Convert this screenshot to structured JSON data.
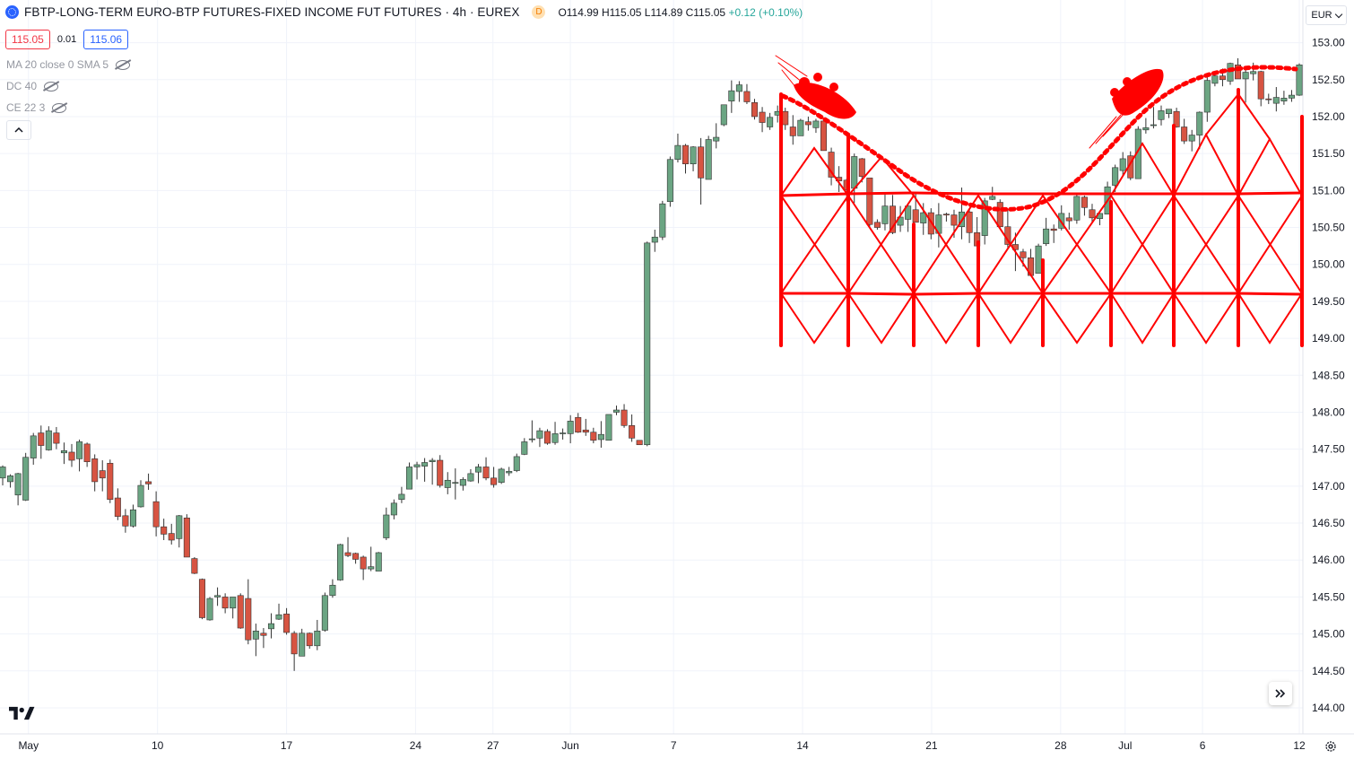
{
  "header": {
    "title": "FBTP-LONG-TERM EURO-BTP FUTURES-FIXED INCOME FUT FUTURES · 4h · EUREX",
    "badge": "D",
    "open": "O114.99",
    "high": "H115.05",
    "low": "L114.89",
    "close": "C115.05",
    "change": "+0.12 (+0.10%)"
  },
  "trade": {
    "sell": "115.05",
    "spread": "0.01",
    "buy": "115.06"
  },
  "indicators": [
    {
      "label": "MA 20 close 0 SMA 5"
    },
    {
      "label": "DC 40"
    },
    {
      "label": "CE 22 3"
    }
  ],
  "currency": "EUR",
  "colors": {
    "up": "#6ba583",
    "down": "#d75442",
    "drawing": "#ff0000",
    "grid": "#f0f3fa"
  },
  "chart_data": {
    "type": "candlestick",
    "y_ticks": [
      "153.00",
      "152.50",
      "152.00",
      "151.50",
      "151.00",
      "150.50",
      "150.00",
      "149.50",
      "149.00",
      "148.50",
      "148.00",
      "147.50",
      "147.00",
      "146.50",
      "146.00",
      "145.50",
      "145.00",
      "144.50",
      "144.00"
    ],
    "x_ticks": [
      "May",
      "10",
      "17",
      "24",
      "27",
      "Jun",
      "7",
      "14",
      "21",
      "28",
      "Jul",
      "6",
      "12"
    ],
    "ylim": [
      143.7,
      153.4
    ],
    "ohlc": [
      [
        147.11,
        147.28,
        147.01,
        147.26
      ],
      [
        147.06,
        147.16,
        146.98,
        147.14
      ],
      [
        146.88,
        147.18,
        146.74,
        147.17
      ],
      [
        146.81,
        147.45,
        146.8,
        147.39
      ],
      [
        147.38,
        147.72,
        147.29,
        147.68
      ],
      [
        147.72,
        147.82,
        147.37,
        147.55
      ],
      [
        147.49,
        147.81,
        147.48,
        147.75
      ],
      [
        147.72,
        147.8,
        147.5,
        147.58
      ],
      [
        147.45,
        147.59,
        147.3,
        147.48
      ],
      [
        147.46,
        147.57,
        147.26,
        147.35
      ],
      [
        147.37,
        147.63,
        147.2,
        147.6
      ],
      [
        147.57,
        147.59,
        147.26,
        147.33
      ],
      [
        147.37,
        147.43,
        146.93,
        147.06
      ],
      [
        147.21,
        147.35,
        146.93,
        147.11
      ],
      [
        147.31,
        147.36,
        146.77,
        146.82
      ],
      [
        146.84,
        146.97,
        146.54,
        146.59
      ],
      [
        146.6,
        146.69,
        146.37,
        146.46
      ],
      [
        146.46,
        146.75,
        146.44,
        146.68
      ],
      [
        146.72,
        147.08,
        146.71,
        147.01
      ],
      [
        147.06,
        147.17,
        146.95,
        147.03
      ],
      [
        146.79,
        146.93,
        146.32,
        146.45
      ],
      [
        146.45,
        146.56,
        146.27,
        146.35
      ],
      [
        146.36,
        146.49,
        146.21,
        146.27
      ],
      [
        146.29,
        146.61,
        146.17,
        146.6
      ],
      [
        146.57,
        146.62,
        146.04,
        146.04
      ],
      [
        146.02,
        146.04,
        145.81,
        145.82
      ],
      [
        145.74,
        145.75,
        145.2,
        145.22
      ],
      [
        145.19,
        145.5,
        145.18,
        145.48
      ],
      [
        145.5,
        145.63,
        145.38,
        145.52
      ],
      [
        145.5,
        145.55,
        145.28,
        145.35
      ],
      [
        145.35,
        145.48,
        145.21,
        145.5
      ],
      [
        145.52,
        145.55,
        145.07,
        145.08
      ],
      [
        145.48,
        145.74,
        144.86,
        144.92
      ],
      [
        144.93,
        145.14,
        144.7,
        145.04
      ],
      [
        145.01,
        145.08,
        144.81,
        144.98
      ],
      [
        145.07,
        145.28,
        144.94,
        145.14
      ],
      [
        145.2,
        145.41,
        145.19,
        145.26
      ],
      [
        145.27,
        145.35,
        144.99,
        145.02
      ],
      [
        145.01,
        145.04,
        144.5,
        144.73
      ],
      [
        144.7,
        145.07,
        144.73,
        145.01
      ],
      [
        145.01,
        145.02,
        144.8,
        144.84
      ],
      [
        144.84,
        145.19,
        144.78,
        145.04
      ],
      [
        145.05,
        145.56,
        145.03,
        145.52
      ],
      [
        145.52,
        145.74,
        145.49,
        145.66
      ],
      [
        145.73,
        146.22,
        145.72,
        146.21
      ],
      [
        146.1,
        146.31,
        146.04,
        146.06
      ],
      [
        146.09,
        146.1,
        145.95,
        146.01
      ],
      [
        146.04,
        146.06,
        145.73,
        145.88
      ],
      [
        145.88,
        146.18,
        145.85,
        145.91
      ],
      [
        145.85,
        146.11,
        145.87,
        146.1
      ],
      [
        146.3,
        146.71,
        146.27,
        146.61
      ],
      [
        146.61,
        146.82,
        146.55,
        146.77
      ],
      [
        146.82,
        146.99,
        146.77,
        146.89
      ],
      [
        146.96,
        147.32,
        146.98,
        147.26
      ],
      [
        147.26,
        147.33,
        147.09,
        147.29
      ],
      [
        147.27,
        147.38,
        147.06,
        147.32
      ],
      [
        147.33,
        147.38,
        147.02,
        147.35
      ],
      [
        147.35,
        147.42,
        146.98,
        147.01
      ],
      [
        146.98,
        147.19,
        146.89,
        147.08
      ],
      [
        147.05,
        147.24,
        146.82,
        147.05
      ],
      [
        147.01,
        147.12,
        146.94,
        147.09
      ],
      [
        147.07,
        147.23,
        147.06,
        147.17
      ],
      [
        147.19,
        147.3,
        147.04,
        147.26
      ],
      [
        147.26,
        147.39,
        147.08,
        147.11
      ],
      [
        147.11,
        147.26,
        146.98,
        147.02
      ],
      [
        147.05,
        147.25,
        147.03,
        147.23
      ],
      [
        147.18,
        147.26,
        147.14,
        147.2
      ],
      [
        147.21,
        147.44,
        147.19,
        147.4
      ],
      [
        147.43,
        147.65,
        147.42,
        147.6
      ],
      [
        147.63,
        147.89,
        147.59,
        147.64
      ],
      [
        147.65,
        147.79,
        147.53,
        147.75
      ],
      [
        147.74,
        147.77,
        147.56,
        147.58
      ],
      [
        147.59,
        147.87,
        147.56,
        147.71
      ],
      [
        147.72,
        147.78,
        147.63,
        147.72
      ],
      [
        147.71,
        147.96,
        147.58,
        147.88
      ],
      [
        147.93,
        147.99,
        147.72,
        147.73
      ],
      [
        147.76,
        147.91,
        147.68,
        147.73
      ],
      [
        147.73,
        147.79,
        147.58,
        147.62
      ],
      [
        147.63,
        147.88,
        147.52,
        147.7
      ],
      [
        147.62,
        147.93,
        147.68,
        147.97
      ],
      [
        148.0,
        148.09,
        147.96,
        148.03
      ],
      [
        148.03,
        148.11,
        147.79,
        147.82
      ],
      [
        147.82,
        147.97,
        147.6,
        147.65
      ],
      [
        147.62,
        147.61,
        147.6,
        147.56
      ],
      [
        147.56,
        150.31,
        147.54,
        150.29
      ],
      [
        150.3,
        150.47,
        150.17,
        150.37
      ],
      [
        150.37,
        150.86,
        150.33,
        150.82
      ],
      [
        150.85,
        151.46,
        150.78,
        151.42
      ],
      [
        151.42,
        151.77,
        151.38,
        151.61
      ],
      [
        151.61,
        151.63,
        151.23,
        151.36
      ],
      [
        151.36,
        151.6,
        151.26,
        151.59
      ],
      [
        151.59,
        151.71,
        150.81,
        151.17
      ],
      [
        151.15,
        151.74,
        151.15,
        151.69
      ],
      [
        151.67,
        151.91,
        151.57,
        151.72
      ],
      [
        151.89,
        152.16,
        151.87,
        152.16
      ],
      [
        152.21,
        152.49,
        152.05,
        152.35
      ],
      [
        152.34,
        152.48,
        152.2,
        152.43
      ],
      [
        152.34,
        152.44,
        152.17,
        152.2
      ],
      [
        152.19,
        152.24,
        151.96,
        152.0
      ],
      [
        152.06,
        152.13,
        151.79,
        151.92
      ],
      [
        151.86,
        152.05,
        151.82,
        151.99
      ],
      [
        152.02,
        152.15,
        151.92,
        152.07
      ],
      [
        152.07,
        152.12,
        151.82,
        151.89
      ],
      [
        151.86,
        152.02,
        151.62,
        151.74
      ],
      [
        151.74,
        151.97,
        151.76,
        151.95
      ],
      [
        151.93,
        152.0,
        151.81,
        151.89
      ],
      [
        151.85,
        151.97,
        151.78,
        151.94
      ],
      [
        151.94,
        151.95,
        151.57,
        151.54
      ],
      [
        151.52,
        151.58,
        151.07,
        151.18
      ],
      [
        151.18,
        151.33,
        150.98,
        151.13
      ],
      [
        151.14,
        151.16,
        150.85,
        151.01
      ],
      [
        151.03,
        151.5,
        150.83,
        151.46
      ],
      [
        151.43,
        151.44,
        151.11,
        151.19
      ],
      [
        151.17,
        151.17,
        150.5,
        150.54
      ],
      [
        150.57,
        150.61,
        150.47,
        150.5
      ],
      [
        150.55,
        150.96,
        150.46,
        150.79
      ],
      [
        150.79,
        150.94,
        150.41,
        150.43
      ],
      [
        150.53,
        150.79,
        150.44,
        150.64
      ],
      [
        150.61,
        150.83,
        150.44,
        150.79
      ],
      [
        150.74,
        150.97,
        150.58,
        150.57
      ],
      [
        150.56,
        150.83,
        150.4,
        150.7
      ],
      [
        150.7,
        150.76,
        150.34,
        150.41
      ],
      [
        150.42,
        150.83,
        150.23,
        150.67
      ],
      [
        150.68,
        150.7,
        150.58,
        150.67
      ],
      [
        150.67,
        150.74,
        150.36,
        150.53
      ],
      [
        150.51,
        151.04,
        150.34,
        150.71
      ],
      [
        150.71,
        150.74,
        150.29,
        150.43
      ],
      [
        150.43,
        150.64,
        150.24,
        150.25
      ],
      [
        150.39,
        150.9,
        150.27,
        150.86
      ],
      [
        150.88,
        151.05,
        150.87,
        150.92
      ],
      [
        150.84,
        150.88,
        150.49,
        150.51
      ],
      [
        150.51,
        150.75,
        150.23,
        150.27
      ],
      [
        150.27,
        150.43,
        149.91,
        150.2
      ],
      [
        150.17,
        150.21,
        149.97,
        150.09
      ],
      [
        150.09,
        150.21,
        149.89,
        149.85
      ],
      [
        149.88,
        150.28,
        149.92,
        150.25
      ],
      [
        150.28,
        150.63,
        150.25,
        150.48
      ],
      [
        150.48,
        150.54,
        150.29,
        150.46
      ],
      [
        150.49,
        150.8,
        150.46,
        150.69
      ],
      [
        150.63,
        150.7,
        150.47,
        150.59
      ],
      [
        150.6,
        150.96,
        150.55,
        150.92
      ],
      [
        150.91,
        150.93,
        150.66,
        150.77
      ],
      [
        150.74,
        150.82,
        150.56,
        150.63
      ],
      [
        150.62,
        150.7,
        150.53,
        150.69
      ],
      [
        150.68,
        151.12,
        150.68,
        151.05
      ],
      [
        151.07,
        151.35,
        150.98,
        151.31
      ],
      [
        151.27,
        151.52,
        151.21,
        151.43
      ],
      [
        151.47,
        151.53,
        151.14,
        151.17
      ],
      [
        151.16,
        151.87,
        151.16,
        151.83
      ],
      [
        151.82,
        151.98,
        151.77,
        151.85
      ],
      [
        151.88,
        152.13,
        151.84,
        151.89
      ],
      [
        151.96,
        152.15,
        151.88,
        152.08
      ],
      [
        152.04,
        152.09,
        151.98,
        152.1
      ],
      [
        152.07,
        152.12,
        151.85,
        151.86
      ],
      [
        151.86,
        151.97,
        151.63,
        151.67
      ],
      [
        151.67,
        151.82,
        151.53,
        151.75
      ],
      [
        151.75,
        152.07,
        151.56,
        152.06
      ],
      [
        152.06,
        152.54,
        151.93,
        152.49
      ],
      [
        152.45,
        152.61,
        152.41,
        152.55
      ],
      [
        152.55,
        152.65,
        152.41,
        152.5
      ],
      [
        152.48,
        152.73,
        152.43,
        152.72
      ],
      [
        152.7,
        152.79,
        152.52,
        152.51
      ],
      [
        152.51,
        152.66,
        152.19,
        152.6
      ],
      [
        152.58,
        152.73,
        152.49,
        152.61
      ],
      [
        152.61,
        152.62,
        152.14,
        152.24
      ],
      [
        152.24,
        152.31,
        152.17,
        152.23
      ],
      [
        152.18,
        152.4,
        152.07,
        152.26
      ],
      [
        152.21,
        152.35,
        152.16,
        152.25
      ],
      [
        152.25,
        152.36,
        152.2,
        152.29
      ],
      [
        152.29,
        152.72,
        152.28,
        152.7
      ]
    ]
  }
}
